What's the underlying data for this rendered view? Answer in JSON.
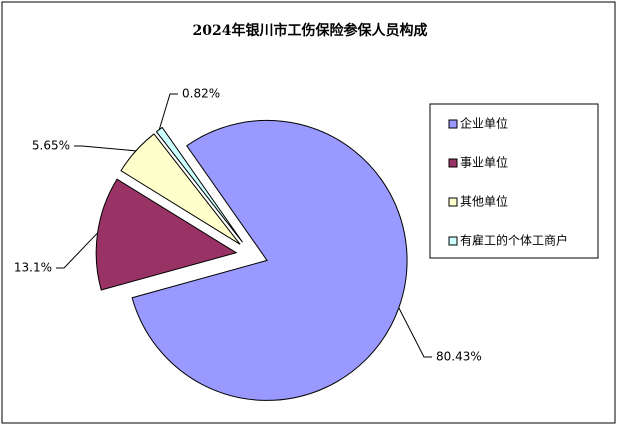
{
  "chart_data": {
    "type": "pie",
    "title": "2024年银川市工伤保险参保人员构成",
    "categories": [
      "企业单位",
      "事业单位",
      "其他单位",
      "有雇工的个体工商户"
    ],
    "values": [
      80.43,
      13.1,
      5.65,
      0.82
    ],
    "value_labels": [
      "80.43%",
      "13.1%",
      "5.65%",
      "0.82%"
    ],
    "colors": [
      "#9999ff",
      "#993366",
      "#ffffcc",
      "#ccffff"
    ],
    "legend": "right"
  }
}
